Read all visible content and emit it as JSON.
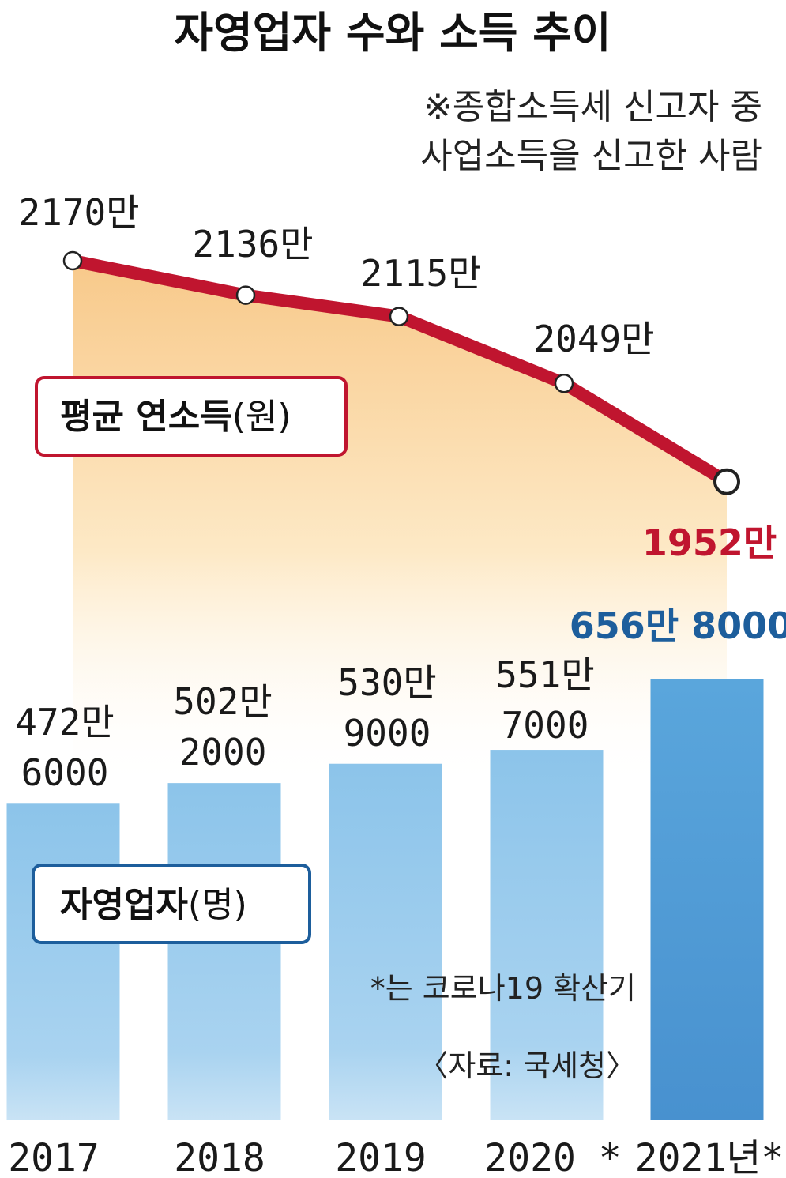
{
  "title": "자영업자 수와 소득 추이",
  "note_lines": [
    "※종합소득세 신고자 중",
    "사업소득을 신고한 사람"
  ],
  "footnote": "*는 코로나19 확산기",
  "source": "〈자료: 국세청〉",
  "colors": {
    "line": "#c0152f",
    "area_top": "#f8c98a",
    "bar_light": "#8cc4ea",
    "bar_dark": "#5aa6dc",
    "highlight_red": "#c0152f",
    "highlight_blue": "#1d5e9c",
    "legend_red_border": "#c0152f",
    "legend_blue_border": "#1d5e9c"
  },
  "chart_data": {
    "type": "bar+line",
    "categories": [
      "2017",
      "2018",
      "2019",
      "2020 *",
      "2021년*"
    ],
    "series": [
      {
        "name": "평균 연소득(원)",
        "kind": "line",
        "values": [
          21700000,
          21360000,
          21150000,
          20490000,
          19520000
        ],
        "labels": [
          "2170만",
          "2136만",
          "2115만",
          "2049만",
          "1952만"
        ]
      },
      {
        "name": "자영업자(명)",
        "kind": "bar",
        "values": [
          4726000,
          5022000,
          5309000,
          5517000,
          6568000
        ],
        "labels": [
          [
            "472만",
            "6000"
          ],
          [
            "502만",
            "2000"
          ],
          [
            "530만",
            "9000"
          ],
          [
            "551만",
            "7000"
          ],
          [
            "656만 8000"
          ]
        ]
      }
    ],
    "legend": [
      {
        "bold": "평균 연소득",
        "rest": "(원)"
      },
      {
        "bold": "자영업자",
        "rest": "(명)"
      }
    ]
  }
}
